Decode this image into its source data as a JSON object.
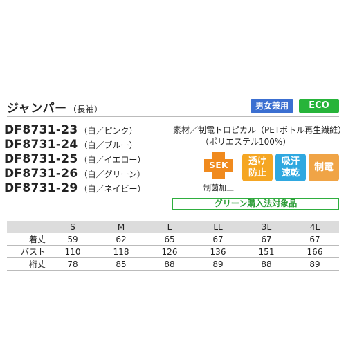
{
  "header": {
    "title": "ジャンパー",
    "subtitle": "（長袖）",
    "badge_unisex": "男女兼用",
    "badge_eco": "ECO"
  },
  "models": [
    {
      "code": "DF8731-23",
      "color": "（白／ピンク）"
    },
    {
      "code": "DF8731-24",
      "color": "（白／ブルー）"
    },
    {
      "code": "DF8731-25",
      "color": "（白／イエロー）"
    },
    {
      "code": "DF8731-26",
      "color": "（白／グリーン）"
    },
    {
      "code": "DF8731-29",
      "color": "（白／ネイビー）"
    }
  ],
  "material": {
    "line1": "素材／制電トロピカル（PETボトル再生繊維）",
    "line2": "（ポリエステル100%）"
  },
  "features": {
    "sek_logo": "SEK",
    "sek_caption": "制菌加工",
    "sek_color": "#f08a1e",
    "badges": [
      {
        "label": "透け防止",
        "color": "#f5a623"
      },
      {
        "label": "吸汗速乾",
        "color": "#2fa8e0"
      },
      {
        "label": "制電",
        "color": "#f0a446"
      }
    ],
    "green_purchase": "グリーン購入法対象品"
  },
  "size_table": {
    "headers": [
      "",
      "S",
      "M",
      "L",
      "LL",
      "3L",
      "4L"
    ],
    "rows": [
      {
        "label": "着丈",
        "values": [
          "59",
          "62",
          "65",
          "67",
          "67",
          "67"
        ]
      },
      {
        "label": "バスト",
        "values": [
          "110",
          "118",
          "126",
          "136",
          "151",
          "166"
        ]
      },
      {
        "label": "裄丈",
        "values": [
          "78",
          "85",
          "88",
          "89",
          "88",
          "89"
        ]
      }
    ]
  }
}
